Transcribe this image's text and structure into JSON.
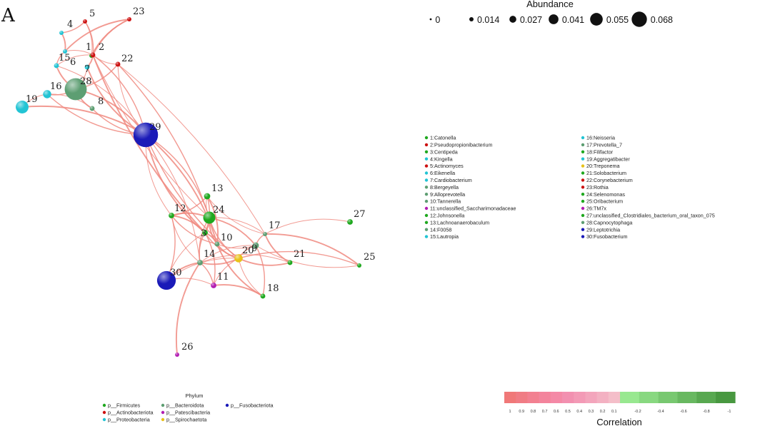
{
  "panel_label": "A",
  "abundance_legend": {
    "title": "Abundance",
    "items": [
      {
        "label": "0",
        "value": 0
      },
      {
        "label": "0.014",
        "value": 0.014
      },
      {
        "label": "0.027",
        "value": 0.027
      },
      {
        "label": "0.041",
        "value": 0.041
      },
      {
        "label": "0.055",
        "value": 0.055
      },
      {
        "label": "0.068",
        "value": 0.068
      }
    ]
  },
  "phylum_legend": {
    "title": "Phylum",
    "items": [
      {
        "label": "p__Firmicutes",
        "color": "#1fa81f"
      },
      {
        "label": "p__Actinobacteriota",
        "color": "#cc1111"
      },
      {
        "label": "p__Proteobacteria",
        "color": "#22c4d4"
      },
      {
        "label": "p__Bacteroidota",
        "color": "#5d9e72"
      },
      {
        "label": "p__Patescibacteria",
        "color": "#b21eb2"
      },
      {
        "label": "p__Spirochaetota",
        "color": "#e8c21a"
      },
      {
        "label": "p__Fusobacteriota",
        "color": "#1a1ab8"
      }
    ]
  },
  "genus_legend": [
    {
      "label": "1:Catonella",
      "color": "#1fa81f"
    },
    {
      "label": "2:Pseudopropionibacterium",
      "color": "#cc1111"
    },
    {
      "label": "3:Centipeda",
      "color": "#1fa81f"
    },
    {
      "label": "4:Kingella",
      "color": "#22c4d4"
    },
    {
      "label": "5:Actinomyces",
      "color": "#cc1111"
    },
    {
      "label": "6:Eikenella",
      "color": "#22c4d4"
    },
    {
      "label": "7:Cardiobacterium",
      "color": "#22c4d4"
    },
    {
      "label": "8:Bergeyella",
      "color": "#5d9e72"
    },
    {
      "label": "9:Alloprevotella",
      "color": "#5d9e72"
    },
    {
      "label": "10:Tannerella",
      "color": "#5d9e72"
    },
    {
      "label": "11:unclassified_Saccharimonadaceae",
      "color": "#b21eb2"
    },
    {
      "label": "12:Johnsonella",
      "color": "#1fa81f"
    },
    {
      "label": "13:Lachnoanaerobaculum",
      "color": "#1fa81f"
    },
    {
      "label": "14:F0058",
      "color": "#5d9e72"
    },
    {
      "label": "15:Lautropia",
      "color": "#22c4d4"
    },
    {
      "label": "16:Neisseria",
      "color": "#22c4d4"
    },
    {
      "label": "17:Prevotella_7",
      "color": "#5d9e72"
    },
    {
      "label": "18:Filifactor",
      "color": "#1fa81f"
    },
    {
      "label": "19:Aggregatibacter",
      "color": "#22c4d4"
    },
    {
      "label": "20:Treponema",
      "color": "#e8c21a"
    },
    {
      "label": "21:Solobacterium",
      "color": "#1fa81f"
    },
    {
      "label": "22:Corynebacterium",
      "color": "#cc1111"
    },
    {
      "label": "23:Rothia",
      "color": "#cc1111"
    },
    {
      "label": "24:Selenomonas",
      "color": "#1fa81f"
    },
    {
      "label": "25:Oribacterium",
      "color": "#1fa81f"
    },
    {
      "label": "26:TM7x",
      "color": "#b21eb2"
    },
    {
      "label": "27:unclassified_Clostridiales_bacterium_oral_taxon_075",
      "color": "#1fa81f"
    },
    {
      "label": "28:Capnocytophaga",
      "color": "#5d9e72"
    },
    {
      "label": "29:Leptotrichia",
      "color": "#1a1ab8"
    },
    {
      "label": "30:Fusobacterium",
      "color": "#1a1ab8"
    }
  ],
  "correlation_bar": {
    "title": "Correlation",
    "ticks": [
      "1",
      "0.9",
      "0.8",
      "0.7",
      "0.6",
      "0.5",
      "0.4",
      "0.3",
      "0.2",
      "0.1",
      "-0.2",
      "-0.4",
      "-0.6",
      "-0.8",
      "-1"
    ],
    "positive_colors": [
      "#f07878",
      "#f07c84",
      "#f28090",
      "#f3849c",
      "#f489a6",
      "#f290b0",
      "#f39ab6",
      "#f3a5bc",
      "#f3b1c2",
      "#f4bec9"
    ],
    "negative_colors": [
      "#98e890",
      "#88d880",
      "#78c870",
      "#68b860",
      "#58a850",
      "#489840"
    ]
  },
  "nodes": [
    {
      "label": "1",
      "phylum": "p__Firmicutes",
      "color": "#1fa81f",
      "abundance": 0.006
    },
    {
      "label": "2",
      "phylum": "p__Actinobacteriota",
      "color": "#cc1111",
      "abundance": 0.008
    },
    {
      "label": "3",
      "phylum": "p__Firmicutes",
      "color": "#1fa81f",
      "abundance": 0.01
    },
    {
      "label": "4",
      "phylum": "p__Proteobacteria",
      "color": "#22c4d4",
      "abundance": 0.006
    },
    {
      "label": "5",
      "phylum": "p__Actinobacteriota",
      "color": "#cc1111",
      "abundance": 0.006
    },
    {
      "label": "6",
      "phylum": "p__Proteobacteria",
      "color": "#22c4d4",
      "abundance": 0.006
    },
    {
      "label": "7",
      "phylum": "p__Proteobacteria",
      "color": "#22c4d4",
      "abundance": 0.008
    },
    {
      "label": "8",
      "phylum": "p__Bacteroidota",
      "color": "#5d9e72",
      "abundance": 0.008
    },
    {
      "label": "9",
      "phylum": "p__Bacteroidota",
      "color": "#5d9e72",
      "abundance": 0.012
    },
    {
      "label": "10",
      "phylum": "p__Bacteroidota",
      "color": "#5d9e72",
      "abundance": 0.008
    },
    {
      "label": "11",
      "phylum": "p__Patescibacteria",
      "color": "#b21eb2",
      "abundance": 0.01
    },
    {
      "label": "12",
      "phylum": "p__Firmicutes",
      "color": "#1fa81f",
      "abundance": 0.01
    },
    {
      "label": "13",
      "phylum": "p__Firmicutes",
      "color": "#1fa81f",
      "abundance": 0.012
    },
    {
      "label": "14",
      "phylum": "p__Bacteroidota",
      "color": "#5d9e72",
      "abundance": 0.01
    },
    {
      "label": "15",
      "phylum": "p__Proteobacteria",
      "color": "#22c4d4",
      "abundance": 0.008
    },
    {
      "label": "16",
      "phylum": "p__Proteobacteria",
      "color": "#22c4d4",
      "abundance": 0.018
    },
    {
      "label": "17",
      "phylum": "p__Bacteroidota",
      "color": "#5d9e72",
      "abundance": 0.006
    },
    {
      "label": "18",
      "phylum": "p__Firmicutes",
      "color": "#1fa81f",
      "abundance": 0.008
    },
    {
      "label": "19",
      "phylum": "p__Proteobacteria",
      "color": "#22c4d4",
      "abundance": 0.032
    },
    {
      "label": "20",
      "phylum": "p__Spirochaetota",
      "color": "#e8c21a",
      "abundance": 0.018
    },
    {
      "label": "21",
      "phylum": "p__Firmicutes",
      "color": "#1fa81f",
      "abundance": 0.008
    },
    {
      "label": "22",
      "phylum": "p__Actinobacteriota",
      "color": "#cc1111",
      "abundance": 0.008
    },
    {
      "label": "23",
      "phylum": "p__Actinobacteriota",
      "color": "#cc1111",
      "abundance": 0.006
    },
    {
      "label": "24",
      "phylum": "p__Firmicutes",
      "color": "#1fa81f",
      "abundance": 0.03
    },
    {
      "label": "25",
      "phylum": "p__Firmicutes",
      "color": "#1fa81f",
      "abundance": 0.006
    },
    {
      "label": "26",
      "phylum": "p__Patescibacteria",
      "color": "#b21eb2",
      "abundance": 0.006
    },
    {
      "label": "27",
      "phylum": "p__Firmicutes",
      "color": "#1fa81f",
      "abundance": 0.01
    },
    {
      "label": "28",
      "phylum": "p__Bacteroidota",
      "color": "#5d9e72",
      "abundance": 0.06
    },
    {
      "label": "29",
      "phylum": "p__Fusobacteriota",
      "color": "#1a1ab8",
      "abundance": 0.068
    },
    {
      "label": "30",
      "phylum": "p__Fusobacteriota",
      "color": "#1a1ab8",
      "abundance": 0.05
    }
  ]
}
